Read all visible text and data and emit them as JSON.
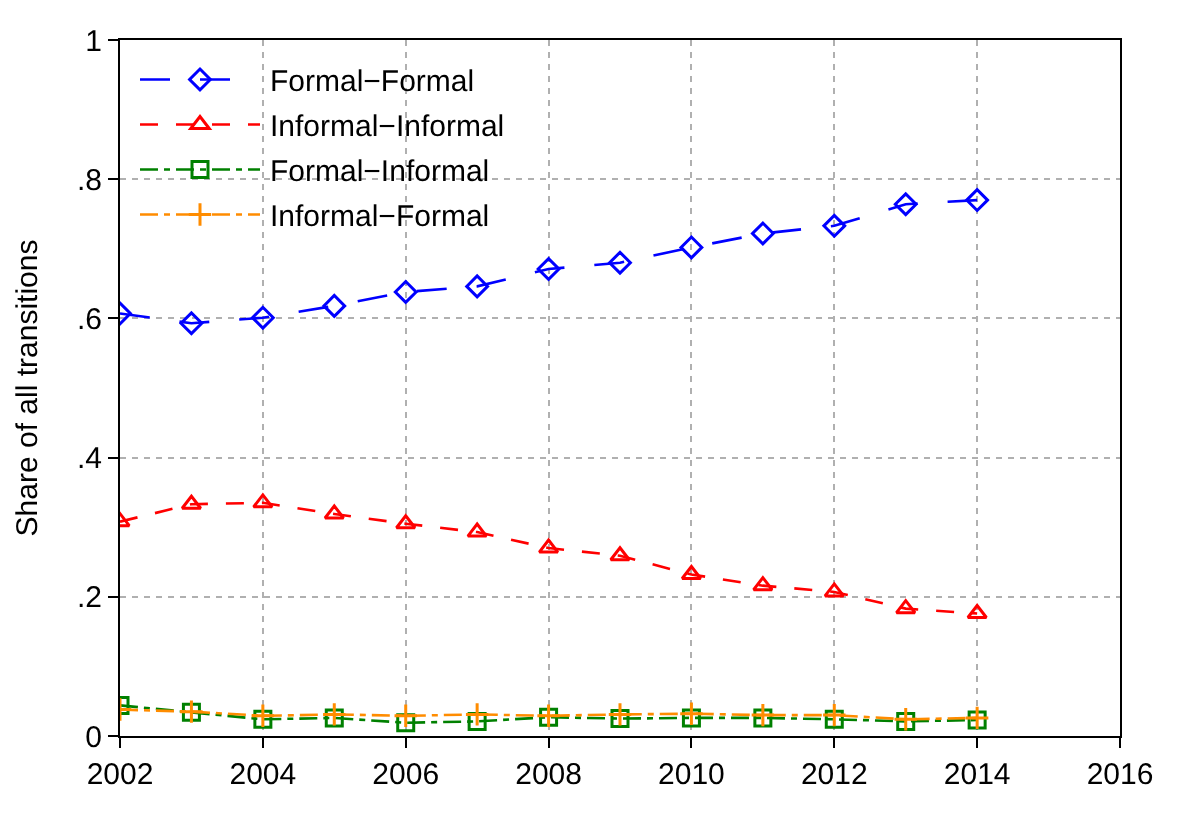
{
  "chart_data": {
    "type": "line",
    "ylabel": "Share of all transitions",
    "x": [
      2002,
      2003,
      2004,
      2005,
      2006,
      2007,
      2008,
      2009,
      2010,
      2011,
      2012,
      2013,
      2014
    ],
    "series": [
      {
        "name": "Formal−Formal",
        "color": "#0000ff",
        "marker": "diamond",
        "line_style": "longdash",
        "values": [
          0.607,
          0.593,
          0.601,
          0.618,
          0.638,
          0.646,
          0.671,
          0.68,
          0.702,
          0.722,
          0.733,
          0.764,
          0.77
        ]
      },
      {
        "name": "Informal−Informal",
        "color": "#ff0000",
        "marker": "triangle",
        "line_style": "dashed",
        "values": [
          0.308,
          0.333,
          0.335,
          0.319,
          0.305,
          0.293,
          0.27,
          0.259,
          0.232,
          0.216,
          0.207,
          0.183,
          0.176
        ]
      },
      {
        "name": "Formal−Informal",
        "color": "#008000",
        "marker": "square",
        "line_style": "dashdot",
        "values": [
          0.044,
          0.034,
          0.024,
          0.026,
          0.019,
          0.021,
          0.027,
          0.025,
          0.026,
          0.026,
          0.024,
          0.021,
          0.023
        ]
      },
      {
        "name": "Informal−Formal",
        "color": "#ff8c00",
        "marker": "cross",
        "line_style": "dashdot",
        "values": [
          0.038,
          0.035,
          0.029,
          0.031,
          0.029,
          0.031,
          0.029,
          0.031,
          0.032,
          0.03,
          0.03,
          0.024,
          0.026
        ]
      }
    ],
    "xlim": [
      2002,
      2016
    ],
    "xticks": [
      2002,
      2004,
      2006,
      2008,
      2010,
      2012,
      2014,
      2016
    ],
    "ylim": [
      0,
      1
    ],
    "yticks": [
      {
        "value": 0,
        "label": "0"
      },
      {
        "value": 0.2,
        "label": ".2"
      },
      {
        "value": 0.4,
        "label": ".4"
      },
      {
        "value": 0.6,
        "label": ".6"
      },
      {
        "value": 0.8,
        "label": ".8"
      },
      {
        "value": 1,
        "label": "1"
      }
    ],
    "grid": true,
    "legend": "top left"
  }
}
